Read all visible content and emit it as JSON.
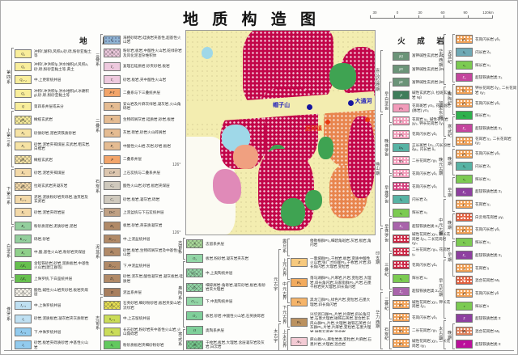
{
  "title": "地 质 构 造 图",
  "scale_bar": {
    "labels": [
      "30",
      "0",
      "30",
      "60",
      "90",
      "120km"
    ]
  },
  "strata": {
    "header": "地  层",
    "col1_eras": [
      {
        "l": "第四系",
        "n": 5
      },
      {
        "l": "上第三系",
        "n": 4
      },
      {
        "l": "下第三系",
        "n": 4
      },
      {
        "l": "白垩系",
        "n": 4
      },
      {
        "l": "侏罗系",
        "n": 6
      }
    ],
    "col1_items": [
      {
        "c": "Q₄",
        "t": "冲积f,湖积l,风积a,砂,砾,粉砂亚黏土等",
        "s": "q"
      },
      {
        "c": "Q₃",
        "t": "冲积f,冲洪积fp,洪水堆积pf,风积a,砂,砾,粉砂亚黏土等,黄土",
        "s": "q"
      },
      {
        "c": "Q₃₋₄",
        "t": "中,上更新统并层",
        "s": "q"
      },
      {
        "c": "Q₂",
        "t": "冲积f,冲洪积fp,洪水堆积pf,冰碛积gl,砂,砾,粉砂亚黏土等",
        "s": "q"
      },
      {
        "c": "Q",
        "t": "第四系并层或未分",
        "s": "q"
      },
      {
        "c": "βN₂",
        "t": "橄榄玄武岩",
        "s": "q px"
      },
      {
        "c": "N₂",
        "t": "砂质砂岩,泥岩夹铁质砂岩",
        "s": "n"
      },
      {
        "c": "N₁",
        "t": "砂岩,泥岩夹褐煤层,玄武岩,粗玄岩,白榴岩",
        "s": "n"
      },
      {
        "c": "βN₁",
        "t": "橄榄玄武岩",
        "s": "n px"
      },
      {
        "c": "E₃",
        "t": "砂岩,泥岩夹褐煤层",
        "s": "e"
      },
      {
        "c": "βE",
        "t": "拉斑玄武岩夹凝灰岩",
        "s": "e px"
      },
      {
        "c": "E₂₋₃",
        "t": "泥岩,泥质粉砂岩夹砾岩,油页岩及玄武岩",
        "s": "e"
      },
      {
        "c": "E₁",
        "t": "砂岩,泥岩夹砾岩层",
        "s": "e"
      },
      {
        "c": "K₂",
        "t": "粉砂质泥岩,泥质砂岩,泥岩",
        "s": "k"
      },
      {
        "c": "K₁₋₂",
        "t": "砾岩,砂岩",
        "s": "k"
      },
      {
        "c": "K₁",
        "t": "中,酸,基性火山岩,粉砂岩夹煤层",
        "s": "kg2"
      },
      {
        "c": "J₃K₁",
        "t": "含锰铁砂岩,砂岩,泥质板岩,中基性火山岩(建江群等)",
        "s": "kg"
      },
      {
        "c": "J₃K₁",
        "t": "上侏罗统,下白垩统并层",
        "s": "kg"
      },
      {
        "c": "J₃",
        "t": "酸性,碱性火山岩夹砂岩,板岩夹煤层",
        "s": "wh px"
      },
      {
        "c": "J₂₋₃",
        "t": "中,上侏罗统并层",
        "s": "j1"
      },
      {
        "c": "J₂",
        "t": "砂岩,泥质板岩,凝灰岩夹灰质砾岩",
        "s": "j1"
      },
      {
        "c": "J₁₋₂",
        "t": "下,中侏罗统并层",
        "s": "j2"
      },
      {
        "c": "J₁",
        "t": "砂岩,板岩夹砾质砂岩,中基性火山岩",
        "s": "j2"
      }
    ],
    "col2_eras": [
      {
        "l": "三叠系",
        "n": 4
      },
      {
        "l": "二叠系",
        "n": 6
      },
      {
        "l": "石炭系",
        "n": 3
      },
      {
        "l": "泥盆系",
        "n": 7
      },
      {
        "l": "志留系",
        "n": 4
      }
    ],
    "col2_items": [
      {
        "c": "T₃",
        "t": "海相砂砾岩,硅质岩夹基性,超基性火山岩",
        "s": "tb pdd"
      },
      {
        "c": "T",
        "t": "粉砂岩,板岩,中酸性火山岩,蛇绿杂岩及风化泥混杂堆积体",
        "s": "tp px"
      },
      {
        "c": "T₂",
        "t": "复理石硅质岩,砂夹砂岩,板岩",
        "s": "tp"
      },
      {
        "c": "T₁",
        "t": "砂岩,板岩,夹中酸性火山岩",
        "s": "tp"
      },
      {
        "c": "P-T",
        "t": "二叠系与下三叠统并层",
        "s": "pt"
      },
      {
        "c": "P₂",
        "t": "安山岩及片麻灰绿岩,凝灰岩,火山角砾岩",
        "s": "p"
      },
      {
        "c": "P₁",
        "t": "生物碎屑灰岩,硅质岩,砂岩,板岩",
        "s": "p"
      },
      {
        "c": "P₂",
        "t": "灰岩,砾岩,砂岩火山碎屑岩",
        "s": "p"
      },
      {
        "c": "P₁",
        "t": "中酸性火山岩,灰岩,砂岩,板岩",
        "s": "p"
      },
      {
        "c": "P",
        "t": "二叠系并层",
        "s": "pt"
      },
      {
        "c": "C-P",
        "t": "上石炭统与二叠系并层",
        "s": "cp"
      },
      {
        "c": "C₂",
        "t": "酸性火山岩,砂岩,板岩夹煤层",
        "s": "c"
      },
      {
        "c": "C₁",
        "t": "砂岩,板岩,凝灰岩,砾岩",
        "s": "c"
      },
      {
        "c": "D-C",
        "t": "上泥盆统与下石炭统并层",
        "s": "dc"
      },
      {
        "c": "D₃",
        "t": "板岩,砂岩,英安质凝灰岩",
        "s": "d"
      },
      {
        "c": "D₂₋₃",
        "t": "中,上泥盆统并层",
        "s": "d"
      },
      {
        "c": "D₂",
        "t": "砂岩,板岩,生物碎屑灰岩及中基性火山岩",
        "s": "d"
      },
      {
        "c": "D₁₋₂",
        "t": "下,中泥盆统并层",
        "s": "d"
      },
      {
        "c": "D₁",
        "t": "砂岩,泥灰岩,酸性凝灰岩,凝灰板岩,硅质岩",
        "s": "d"
      },
      {
        "c": "D",
        "t": "泥盆系并层",
        "s": "d2"
      },
      {
        "c": "S₃",
        "t": "石英砂岩,细砂粉砂岩,板岩夹安山岩-流纹岩",
        "s": "s3 px"
      },
      {
        "c": "S₂₋₃",
        "t": "中,上志留统并层",
        "s": "s2"
      },
      {
        "c": "S₂",
        "t": "长石砂岩,粉砂岩夹中基性火山岩,火山角砾岩",
        "s": "s2"
      },
      {
        "c": "S₁",
        "t": "粉砂质板岩夹细砂粉砂岩",
        "s": "s1"
      }
    ],
    "col3_eras": [
      {
        "l": "志留系",
        "n": 1
      },
      {
        "l": "奥陶系",
        "n": 6
      },
      {
        "l": "寒武系",
        "n": 1
      }
    ],
    "col3_items": [
      {
        "c": "S",
        "t": "志留系并层",
        "s": "sg px"
      },
      {
        "c": "O₃",
        "t": "板岩,粉砂岩,凝灰岩夹灰岩",
        "s": "o"
      },
      {
        "c": "O₂₋₃",
        "t": "中,上奥陶统并层",
        "s": "o px"
      },
      {
        "c": "O₂",
        "t": "细碎屑岩-角砾岩,凝灰砂岩,板岩,粉砂岩夹大理岩",
        "s": "o px"
      },
      {
        "c": "O₁₋₂",
        "t": "下,中奥陶统并层",
        "s": "o"
      },
      {
        "c": "O₁",
        "t": "板岩,砂岩,中酸性火山岩,石英质砾岩",
        "s": "o2"
      },
      {
        "c": "O",
        "t": "奥陶系并层",
        "s": "o2"
      },
      {
        "c": "∈",
        "t": "千枚岩,板岩,大理岩,含层凝灰岩及灰岩,白云岩",
        "s": "cam px"
      }
    ],
    "col4_eras_outer": [
      {
        "l": "",
        "n": 1
      },
      {
        "l": "元古宇",
        "n": 4
      },
      {
        "l": "太古宇",
        "n": 1
      }
    ],
    "col4_eras_inner": [
      {
        "l": "",
        "n": 1
      },
      {
        "l": "震旦系",
        "n": 1
      },
      {
        "l": "上元古界",
        "n": 1
      },
      {
        "l": "中元古界",
        "n": 1
      },
      {
        "l": "下元古界",
        "n": 1
      },
      {
        "l": "上太古界",
        "n": 1
      }
    ],
    "col4_items": [
      {
        "c": "",
        "t": "倭勒根群Pt₃,细碧角斑岩,灰岩,板岩,角闪岩",
        "s": ""
      },
      {
        "c": "Z",
        "t": "一面坡群Pt₃,千枚岩,板岩,变质中酸性火山岩;张广才岭群Pt₃,千枚岩,片岩,斜长角闪岩,大理岩,变粒岩",
        "s": "z"
      },
      {
        "c": "Pt₃",
        "t": "落马湖群Pt₃,片麻岩,片岩,变粒岩,大理岩,斜长角闪岩;马家街群Pt₃,片岩,石墨千枚岩夹大理岩,斜长角闪岩",
        "s": "pt3"
      },
      {
        "c": "Pt₂",
        "t": "黑龙江群Pt₂,绿色片岩,变粒岩,石墨大理岩,斜长角闪岩",
        "s": "pt2"
      },
      {
        "c": "Pt₁",
        "t": "兴华渡口群Pt₁,片岩,片麻岩,斜长角闪岩,石墨大理岩,磁铁石英岩,混合岩;东风山群Pt₁,片岩,大理岩,磁铁石英岩;兴东群Pt₁,片岩,片麻岩,变粒岩,石墨大理岩,磁铁石英岩,混合岩",
        "s": "pt1"
      },
      {
        "c": "Ar₃",
        "t": "麻山群Ar₃,麻粒岩类,变粒岩,片麻岩,石墨片岩,大理岩,混合岩",
        "s": "ar"
      }
    ]
  },
  "map": {
    "coord_left_1": "126°",
    "coord_left_2": "126°",
    "blue_site_1": "帽子山",
    "blue_site_2": "大通河",
    "red_site": "泥河镇"
  },
  "igneous": {
    "header": "火  成  岩",
    "col1_eras_outer": [
      {
        "l": "喜马拉雅期",
        "n": 4
      },
      {
        "l": "燕山期",
        "n": 10
      },
      {
        "l": "印支期",
        "n": 5
      },
      {
        "l": "华力西期",
        "n": 4
      }
    ],
    "col1_eras_inner": [
      {
        "l": "",
        "n": 4
      },
      {
        "l": "早白垩世",
        "n": 3
      },
      {
        "l": "晚侏罗世",
        "n": 4
      },
      {
        "l": "早侏罗世",
        "n": 3
      },
      {
        "l": "早侏罗世",
        "n": 2
      },
      {
        "l": "三叠纪",
        "n": 3
      },
      {
        "l": "二叠纪",
        "n": 2
      },
      {
        "l": "石炭纪",
        "n": 2
      }
    ],
    "col1_items": [
      {
        "c": "βQ",
        "t": "富钾碱性玄武岩 βQ",
        "s": "gb"
      },
      {
        "c": "βN",
        "t": "富钾碱性玄武岩 βN",
        "s": "gb"
      },
      {
        "c": "βE",
        "t": "富钾碱性玄武岩 βE",
        "s": "gb"
      },
      {
        "c": "β",
        "t": "碱性玄武岩 β, 拉斑玄武岩 Nβ",
        "s": "gb2"
      },
      {
        "c": "γπ₅",
        "t": "花岗斑岩 γπ₅, 花岗斑岩(脉岩) γπ₅",
        "s": "pk"
      },
      {
        "c": "γ₅",
        "t": "花岗岩 γ₅, 碱性花岗岩 χγ₅, 钾长花岗岩 ξγ₅",
        "s": "pk pdw"
      },
      {
        "c": "γδ₅",
        "t": "花岗闪长岩 γδ₅",
        "s": "pk pdw"
      },
      {
        "c": "ξπ₅",
        "t": "正长斑岩 ξπ₅, 闪长玢岩 δμ₅, 闪长岩 δ₅",
        "s": "te"
      },
      {
        "c": "ηγ₅",
        "t": "二长花岗岩 ηγ₅",
        "s": "pk pdw"
      },
      {
        "c": "γδ₅",
        "t": "花岗闪长岩 γδ₅",
        "s": "pk pdw"
      },
      {
        "c": "γδ₅",
        "t": "花岗闪长岩 γδ₅",
        "s": "mg pdw"
      },
      {
        "c": "δ₅",
        "t": "闪长岩 δ₅",
        "s": "te"
      },
      {
        "c": "ν₅",
        "t": "辉长岩 ν₅",
        "s": "gr"
      },
      {
        "c": "Σ₅",
        "t": "超镁铁质岩类 Σ₅",
        "s": "vi"
      },
      {
        "c": "χγ₄",
        "t": "碱性花岗岩 χγ₄, 钾长花岗岩 ξγ₄, 二长花岗岩 ηγ₄",
        "s": "rd pdw"
      },
      {
        "c": "ηγ₄",
        "t": "二长花岗岩 ηγ₄, 花岗岩 γ₄",
        "s": "rd pdw"
      },
      {
        "c": "γδ₄",
        "t": "花岗闪长岩 γδ₄",
        "s": "rd pdw"
      },
      {
        "c": "ν₄",
        "t": "辉长岩 ν₄",
        "s": "gr"
      },
      {
        "c": "Σ₄",
        "t": "超镁铁质岩类 Σ₄",
        "s": "vi"
      },
      {
        "c": "χγ₃",
        "t": "碱性花岗岩 χγ₃, 钾长花岗岩 ξγ₃",
        "s": "or pdw"
      },
      {
        "c": "γδ₃",
        "t": "花岗闪长岩 γδ₃",
        "s": "or pdw"
      },
      {
        "c": "ηγ₃",
        "t": "二长花岗岩 ηγ₃",
        "s": "or pdw"
      },
      {
        "c": "χγ₃",
        "t": "碱性花岗岩 χγ₃, 二长花岗岩 ηγ₃",
        "s": "or pdw"
      }
    ],
    "col2_eras_outer": [
      {
        "l": "华力西期",
        "n": 4
      },
      {
        "l": "加里东期",
        "n": 4
      },
      {
        "l": "晚元古期",
        "n": 5
      },
      {
        "l": "中元古期",
        "n": 5
      },
      {
        "l": "早元古期",
        "n": 5
      },
      {
        "l": "太古期",
        "n": 2
      }
    ],
    "col2_eras_inner": [
      {
        "l": "泥盆纪",
        "n": 4
      },
      {
        "l": "奥陶纪",
        "n": 2
      },
      {
        "l": "寒武纪",
        "n": 2
      },
      {
        "l": "晚期",
        "n": 2
      },
      {
        "l": "早期",
        "n": 3
      },
      {
        "l": "晚期",
        "n": 2
      },
      {
        "l": "早期",
        "n": 3
      },
      {
        "l": "",
        "n": 5
      },
      {
        "l": "晚期",
        "n": 2
      }
    ],
    "col2_items": [
      {
        "c": "γδ₃",
        "t": "花岗闪长岩 γδ₃",
        "s": "or pdw"
      },
      {
        "c": "δ₃",
        "t": "闪长岩 δ₃",
        "s": "te2"
      },
      {
        "c": "ν₃",
        "t": "辉长岩 ν₃",
        "s": "gr"
      },
      {
        "c": "Σ₃",
        "t": "超镁铁质岩类 Σ₃",
        "s": "mg2"
      },
      {
        "c": "ξγ₂",
        "t": "钾长花岗岩 ξγ₂, 二长花岗岩 ηγ₂",
        "s": "or pdw"
      },
      {
        "c": "γδ₂",
        "t": "花岗闪长岩 γδ₂",
        "s": "or pdw"
      },
      {
        "c": "ν₂",
        "t": "辉长岩 ν₂",
        "s": "gr2"
      },
      {
        "c": "Σ₂",
        "t": "超镁铁质岩类 Σ₂",
        "s": "mg2"
      },
      {
        "c": "γ₂",
        "t": "花岗岩 γ₂, 二长花岗岩 ηγ₂",
        "s": "or pdw"
      },
      {
        "c": "γδ₂",
        "t": "花岗闪长岩 γδ₂",
        "s": "or pdw"
      },
      {
        "c": "δ₂",
        "t": "闪长岩 δ₂",
        "s": "te"
      },
      {
        "c": "ν₂",
        "t": "辉长岩 ν₂",
        "s": "gr"
      },
      {
        "c": "Σ₂",
        "t": "超镁铁质岩类 Σ₂",
        "s": "pu"
      },
      {
        "c": "γ₁",
        "t": "花岗岩 γ₁",
        "s": "or pdw"
      },
      {
        "c": "μγ₁",
        "t": "白云母花岗岩 μγ₁",
        "s": "ro pdw"
      },
      {
        "c": "γδ₁",
        "t": "花岗闪长岩 γδ₁",
        "s": "or pdw"
      },
      {
        "c": "ν₁",
        "t": "辉长岩 ν₁",
        "s": "gr"
      },
      {
        "c": "Σ₁",
        "t": "超镁铁质岩类 Σ₁",
        "s": "pu"
      },
      {
        "c": "γ",
        "t": "花岗岩 γ",
        "s": "or pdw"
      },
      {
        "c": "Mγ",
        "t": "混合花岗岩 Mγ",
        "s": "ro pdw"
      },
      {
        "c": "γδ",
        "t": "花岗闪长岩 γδ",
        "s": "or pdw"
      },
      {
        "c": "ν",
        "t": "辉长岩 ν",
        "s": "gr"
      },
      {
        "c": "Σ",
        "t": "超镁铁质岩类 Σ",
        "s": "pu"
      },
      {
        "c": "Mγ",
        "t": "混合花岗岩 Mγ",
        "s": "sa pdw"
      },
      {
        "c": "Σ",
        "t": "超镁铁质岩类 Σ",
        "s": "mg3"
      }
    ]
  }
}
